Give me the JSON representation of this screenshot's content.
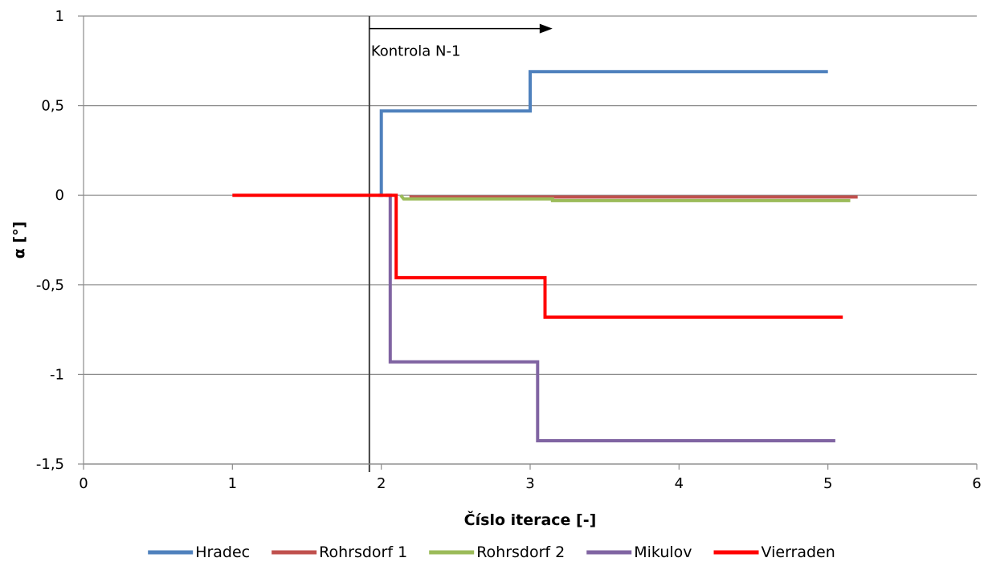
{
  "chart_data": {
    "type": "line",
    "title": "",
    "xlabel": "Číslo iterace [-]",
    "ylabel": "α [°]",
    "xlim": [
      0,
      6
    ],
    "ylim": [
      -1.5,
      1
    ],
    "x_ticks": [
      0,
      1,
      2,
      3,
      4,
      5,
      6
    ],
    "x_tick_labels": [
      "0",
      "1",
      "2",
      "3",
      "4",
      "5",
      "6"
    ],
    "y_ticks": [
      -1.5,
      -1,
      -0.5,
      0,
      0.5,
      1
    ],
    "y_tick_labels": [
      "-1,5",
      "-1",
      "-0,5",
      "0",
      "0,5",
      "1"
    ],
    "grid": "horizontal",
    "legend_position": "bottom",
    "annotation": {
      "text": "Kontrola N-1",
      "vline_x": 1.92,
      "arrow_from_x": 1.92,
      "arrow_to_x": 3.15,
      "arrow_y": 0.93
    },
    "series": [
      {
        "name": "Rohrsdorf 1",
        "color": "#c0504d",
        "points": [
          [
            2.2,
            0
          ],
          [
            2.2,
            -0.01
          ],
          [
            5.2,
            -0.01
          ]
        ]
      },
      {
        "name": "Rohrsdorf 2",
        "color": "#9bbb59",
        "points": [
          [
            2.13,
            0
          ],
          [
            2.15,
            -0.02
          ],
          [
            3.15,
            -0.02
          ],
          [
            3.15,
            -0.03
          ],
          [
            5.15,
            -0.03
          ]
        ]
      },
      {
        "name": "Mikulov",
        "color": "#8064a2",
        "points": [
          [
            2.03,
            0
          ],
          [
            2.06,
            0
          ],
          [
            2.06,
            -0.93
          ],
          [
            3.05,
            -0.93
          ],
          [
            3.05,
            -1.37
          ],
          [
            5.05,
            -1.37
          ]
        ]
      },
      {
        "name": "Hradec",
        "color": "#4f81bd",
        "points": [
          [
            1.98,
            0
          ],
          [
            2.0,
            0
          ],
          [
            2.0,
            0.47
          ],
          [
            3.0,
            0.47
          ],
          [
            3.0,
            0.69
          ],
          [
            5.0,
            0.69
          ]
        ]
      },
      {
        "name": "Vierraden",
        "color": "#ff0000",
        "points": [
          [
            1,
            0
          ],
          [
            2.1,
            0
          ],
          [
            2.1,
            -0.46
          ],
          [
            3.1,
            -0.46
          ],
          [
            3.1,
            -0.68
          ],
          [
            5.1,
            -0.68
          ]
        ]
      }
    ],
    "legend_order": [
      "Hradec",
      "Rohrsdorf 1",
      "Rohrsdorf 2",
      "Mikulov",
      "Vierraden"
    ]
  }
}
